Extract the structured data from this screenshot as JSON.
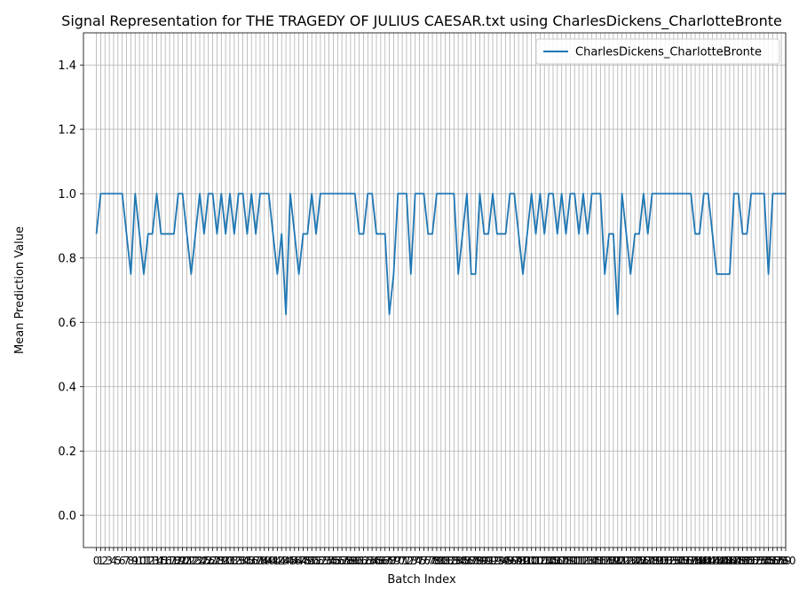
{
  "chart_data": {
    "type": "line",
    "title": "Signal Representation for THE TRAGEDY OF JULIUS CAESAR.txt using CharlesDickens_CharlotteBronte",
    "xlabel": "Batch Index",
    "ylabel": "Mean Prediction Value",
    "xlim": [
      -3,
      160
    ],
    "ylim": [
      -0.1,
      1.5
    ],
    "yticks": [
      "0.0",
      "0.2",
      "0.4",
      "0.6",
      "0.8",
      "1.0",
      "1.2",
      "1.4"
    ],
    "grid": true,
    "legend_position": "top-right",
    "color": "#1f77b4",
    "series": [
      {
        "name": "CharlesDickens_CharlotteBronte",
        "values": [
          0.875,
          1,
          1,
          1,
          1,
          1,
          1,
          0.875,
          0.75,
          1,
          0.875,
          0.75,
          0.875,
          0.875,
          1,
          0.875,
          0.875,
          0.875,
          0.875,
          1,
          1,
          0.875,
          0.75,
          0.875,
          1,
          0.875,
          1,
          1,
          0.875,
          1,
          0.875,
          1,
          0.875,
          1,
          1,
          0.875,
          1,
          0.875,
          1,
          1,
          1,
          0.875,
          0.75,
          0.875,
          0.625,
          1,
          0.875,
          0.75,
          0.875,
          0.875,
          1,
          0.875,
          1,
          1,
          1,
          1,
          1,
          1,
          1,
          1,
          1,
          0.875,
          0.875,
          1,
          1,
          0.875,
          0.875,
          0.875,
          0.625,
          0.75,
          1,
          1,
          1,
          0.75,
          1,
          1,
          1,
          0.875,
          0.875,
          1,
          1,
          1,
          1,
          1,
          0.75,
          0.875,
          1,
          0.75,
          0.75,
          1,
          0.875,
          0.875,
          1,
          0.875,
          0.875,
          0.875,
          1,
          1,
          0.875,
          0.75,
          0.875,
          1,
          0.875,
          1,
          0.875,
          1,
          1,
          0.875,
          1,
          0.875,
          1,
          1,
          0.875,
          1,
          0.875,
          1,
          1,
          1,
          0.75,
          0.875,
          0.875,
          0.625,
          1,
          0.875,
          0.75,
          0.875,
          0.875,
          1,
          0.875,
          1,
          1,
          1,
          1,
          1,
          1,
          1,
          1,
          1,
          1,
          0.875,
          0.875,
          1,
          1,
          0.875,
          0.75,
          0.75,
          0.75,
          0.75,
          1,
          1,
          0.875,
          0.875,
          1,
          1,
          1,
          1,
          0.75,
          1,
          1,
          1,
          1
        ]
      }
    ]
  }
}
